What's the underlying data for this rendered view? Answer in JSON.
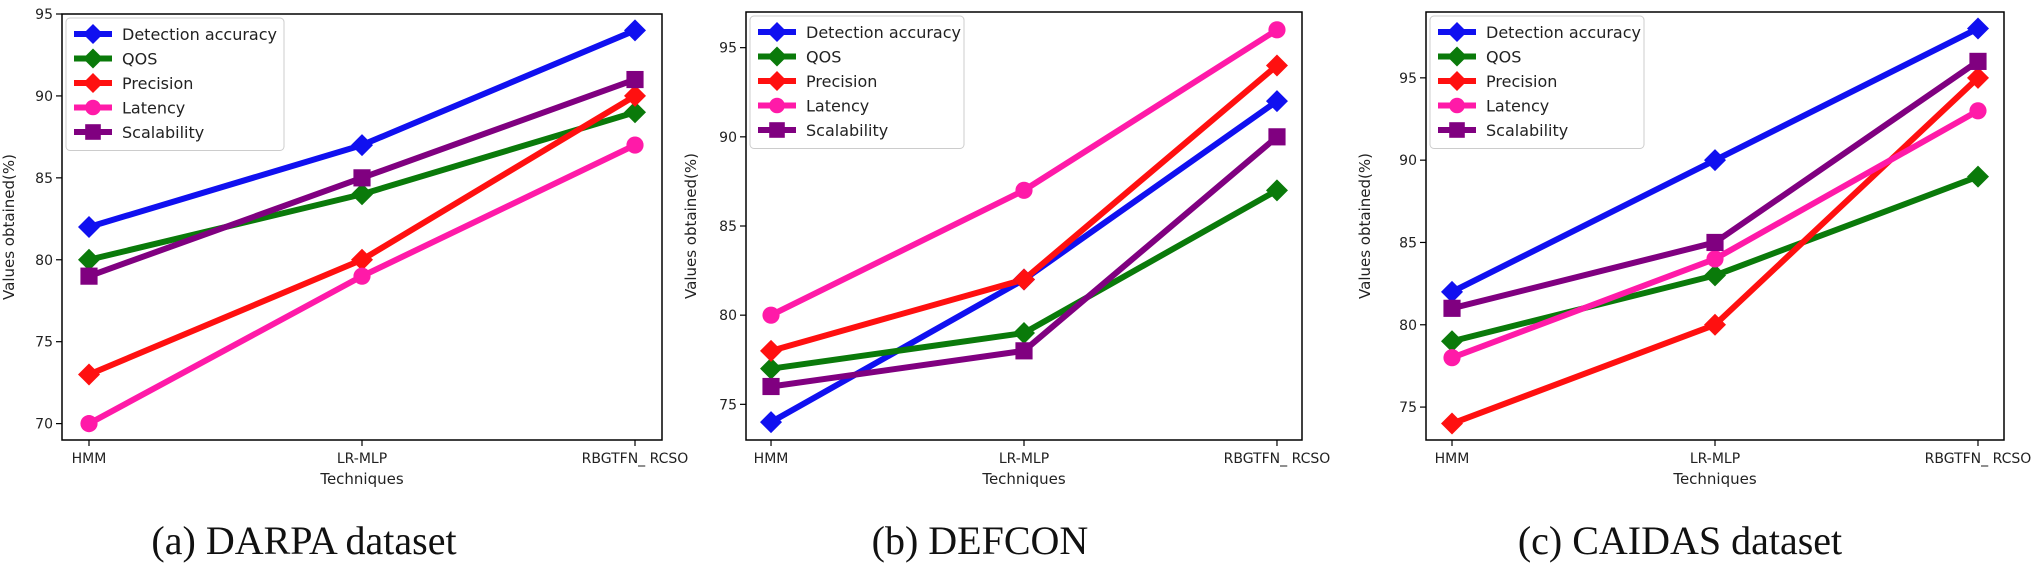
{
  "chart_data": [
    {
      "type": "line",
      "caption": "(a) DARPA dataset",
      "categories": [
        "HMM",
        "LR-MLP",
        "RBGTFN_ RCSO"
      ],
      "xlabel": "Techniques",
      "ylabel": "Values obtained(%)",
      "ylim": [
        69,
        95
      ],
      "yticks": [
        70,
        75,
        80,
        85,
        90,
        95
      ],
      "series": [
        {
          "name": "Detection accuracy",
          "color": "#1010f0",
          "marker": "diamond",
          "values": [
            82,
            87,
            94
          ]
        },
        {
          "name": "QOS",
          "color": "#0a7a0a",
          "marker": "diamond",
          "values": [
            80,
            84,
            89
          ]
        },
        {
          "name": "Precision",
          "color": "#ff1010",
          "marker": "diamond",
          "values": [
            73,
            80,
            90
          ]
        },
        {
          "name": "Latency",
          "color": "#ff1aa8",
          "marker": "circle",
          "values": [
            70,
            79,
            87
          ]
        },
        {
          "name": "Scalability",
          "color": "#800080",
          "marker": "square",
          "values": [
            79,
            85,
            91
          ]
        }
      ]
    },
    {
      "type": "line",
      "caption": "(b) DEFCON",
      "categories": [
        "HMM",
        "LR-MLP",
        "RBGTFN_ RCSO"
      ],
      "xlabel": "Techniques",
      "ylabel": "Values obtained(%)",
      "ylim": [
        73,
        97
      ],
      "yticks": [
        75,
        80,
        85,
        90,
        95
      ],
      "series": [
        {
          "name": "Detection accuracy",
          "color": "#1010f0",
          "marker": "diamond",
          "values": [
            74,
            82,
            92
          ]
        },
        {
          "name": "QOS",
          "color": "#0a7a0a",
          "marker": "diamond",
          "values": [
            77,
            79,
            87
          ]
        },
        {
          "name": "Precision",
          "color": "#ff1010",
          "marker": "diamond",
          "values": [
            78,
            82,
            94
          ]
        },
        {
          "name": "Latency",
          "color": "#ff1aa8",
          "marker": "circle",
          "values": [
            80,
            87,
            96
          ]
        },
        {
          "name": "Scalability",
          "color": "#800080",
          "marker": "square",
          "values": [
            76,
            78,
            90
          ]
        }
      ]
    },
    {
      "type": "line",
      "caption": "(c) CAIDAS dataset",
      "categories": [
        "HMM",
        "LR-MLP",
        "RBGTFN_ RCSO"
      ],
      "xlabel": "Techniques",
      "ylabel": "Values obtained(%)",
      "ylim": [
        73,
        99
      ],
      "yticks": [
        75,
        80,
        85,
        90,
        95
      ],
      "series": [
        {
          "name": "Detection accuracy",
          "color": "#1010f0",
          "marker": "diamond",
          "values": [
            82,
            90,
            98
          ]
        },
        {
          "name": "QOS",
          "color": "#0a7a0a",
          "marker": "diamond",
          "values": [
            79,
            83,
            89
          ]
        },
        {
          "name": "Precision",
          "color": "#ff1010",
          "marker": "diamond",
          "values": [
            74,
            80,
            95
          ]
        },
        {
          "name": "Latency",
          "color": "#ff1aa8",
          "marker": "circle",
          "values": [
            78,
            84,
            93
          ]
        },
        {
          "name": "Scalability",
          "color": "#800080",
          "marker": "square",
          "values": [
            81,
            85,
            96
          ]
        }
      ]
    }
  ]
}
